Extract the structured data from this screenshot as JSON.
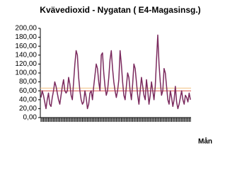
{
  "chart_data": {
    "type": "line",
    "title": "Kvävedioxid - Nygatan ( E4-Magasinsg.)",
    "x_label": "Mån",
    "categories": [
      null,
      null,
      null,
      null,
      null,
      null,
      null,
      null,
      null,
      null,
      null,
      null,
      null,
      null,
      null,
      null,
      null,
      null,
      null,
      null,
      null,
      null,
      null,
      null,
      null,
      null,
      null,
      null,
      null,
      null,
      null,
      null,
      null,
      null,
      null,
      null,
      null,
      null,
      null,
      null,
      null,
      null,
      null,
      null,
      null,
      null,
      null,
      null,
      null,
      null,
      null,
      null,
      null,
      null,
      null,
      null,
      null,
      null,
      null,
      null,
      null,
      null,
      null,
      null,
      null,
      null,
      null,
      null,
      null,
      null,
      null,
      null,
      null,
      null,
      null,
      null,
      null,
      null,
      null,
      null,
      null,
      null,
      null,
      null,
      null,
      null,
      null,
      null,
      null,
      null,
      null,
      null,
      null,
      null,
      null,
      null,
      null,
      null,
      null,
      null,
      null,
      null,
      null,
      null,
      null,
      null,
      null,
      null,
      null,
      null,
      null,
      null,
      null,
      null,
      null,
      null,
      null,
      null,
      null,
      null
    ],
    "series": [
      {
        "name": null,
        "color": "#7b2a5e",
        "values": [
          45,
          60,
          50,
          35,
          20,
          40,
          55,
          30,
          25,
          45,
          60,
          80,
          70,
          55,
          40,
          30,
          50,
          70,
          85,
          60,
          55,
          60,
          90,
          75,
          50,
          40,
          80,
          120,
          150,
          140,
          90,
          60,
          40,
          30,
          35,
          60,
          45,
          20,
          30,
          55,
          60,
          40,
          70,
          95,
          120,
          110,
          80,
          60,
          140,
          145,
          100,
          70,
          50,
          60,
          90,
          130,
          150,
          110,
          80,
          60,
          45,
          60,
          85,
          150,
          120,
          80,
          50,
          40,
          70,
          100,
          90,
          60,
          40,
          75,
          120,
          110,
          80,
          50,
          30,
          60,
          90,
          70,
          50,
          40,
          85,
          60,
          30,
          50,
          80,
          60,
          40,
          70,
          130,
          185,
          120,
          80,
          50,
          60,
          110,
          100,
          70,
          40,
          30,
          60,
          45,
          25,
          40,
          70,
          35,
          20,
          30,
          45,
          60,
          40,
          30,
          50,
          45,
          35,
          55,
          40
        ]
      }
    ],
    "reference_lines": [
      {
        "value": 60,
        "color": "#d9534f"
      },
      {
        "value": 66,
        "color": "#f0c080"
      }
    ],
    "ylim": [
      0,
      200
    ],
    "yticks": [
      {
        "value": 0,
        "label": "0,00"
      },
      {
        "value": 20,
        "label": "20,00"
      },
      {
        "value": 40,
        "label": "40,00"
      },
      {
        "value": 60,
        "label": "60,00"
      },
      {
        "value": 80,
        "label": "80,00"
      },
      {
        "value": 100,
        "label": "100,00"
      },
      {
        "value": 120,
        "label": "120,00"
      },
      {
        "value": 140,
        "label": "140,00"
      },
      {
        "value": 160,
        "label": "160,00"
      },
      {
        "value": 180,
        "label": "180,00"
      },
      {
        "value": 200,
        "label": "200,00"
      }
    ],
    "grid": false
  }
}
